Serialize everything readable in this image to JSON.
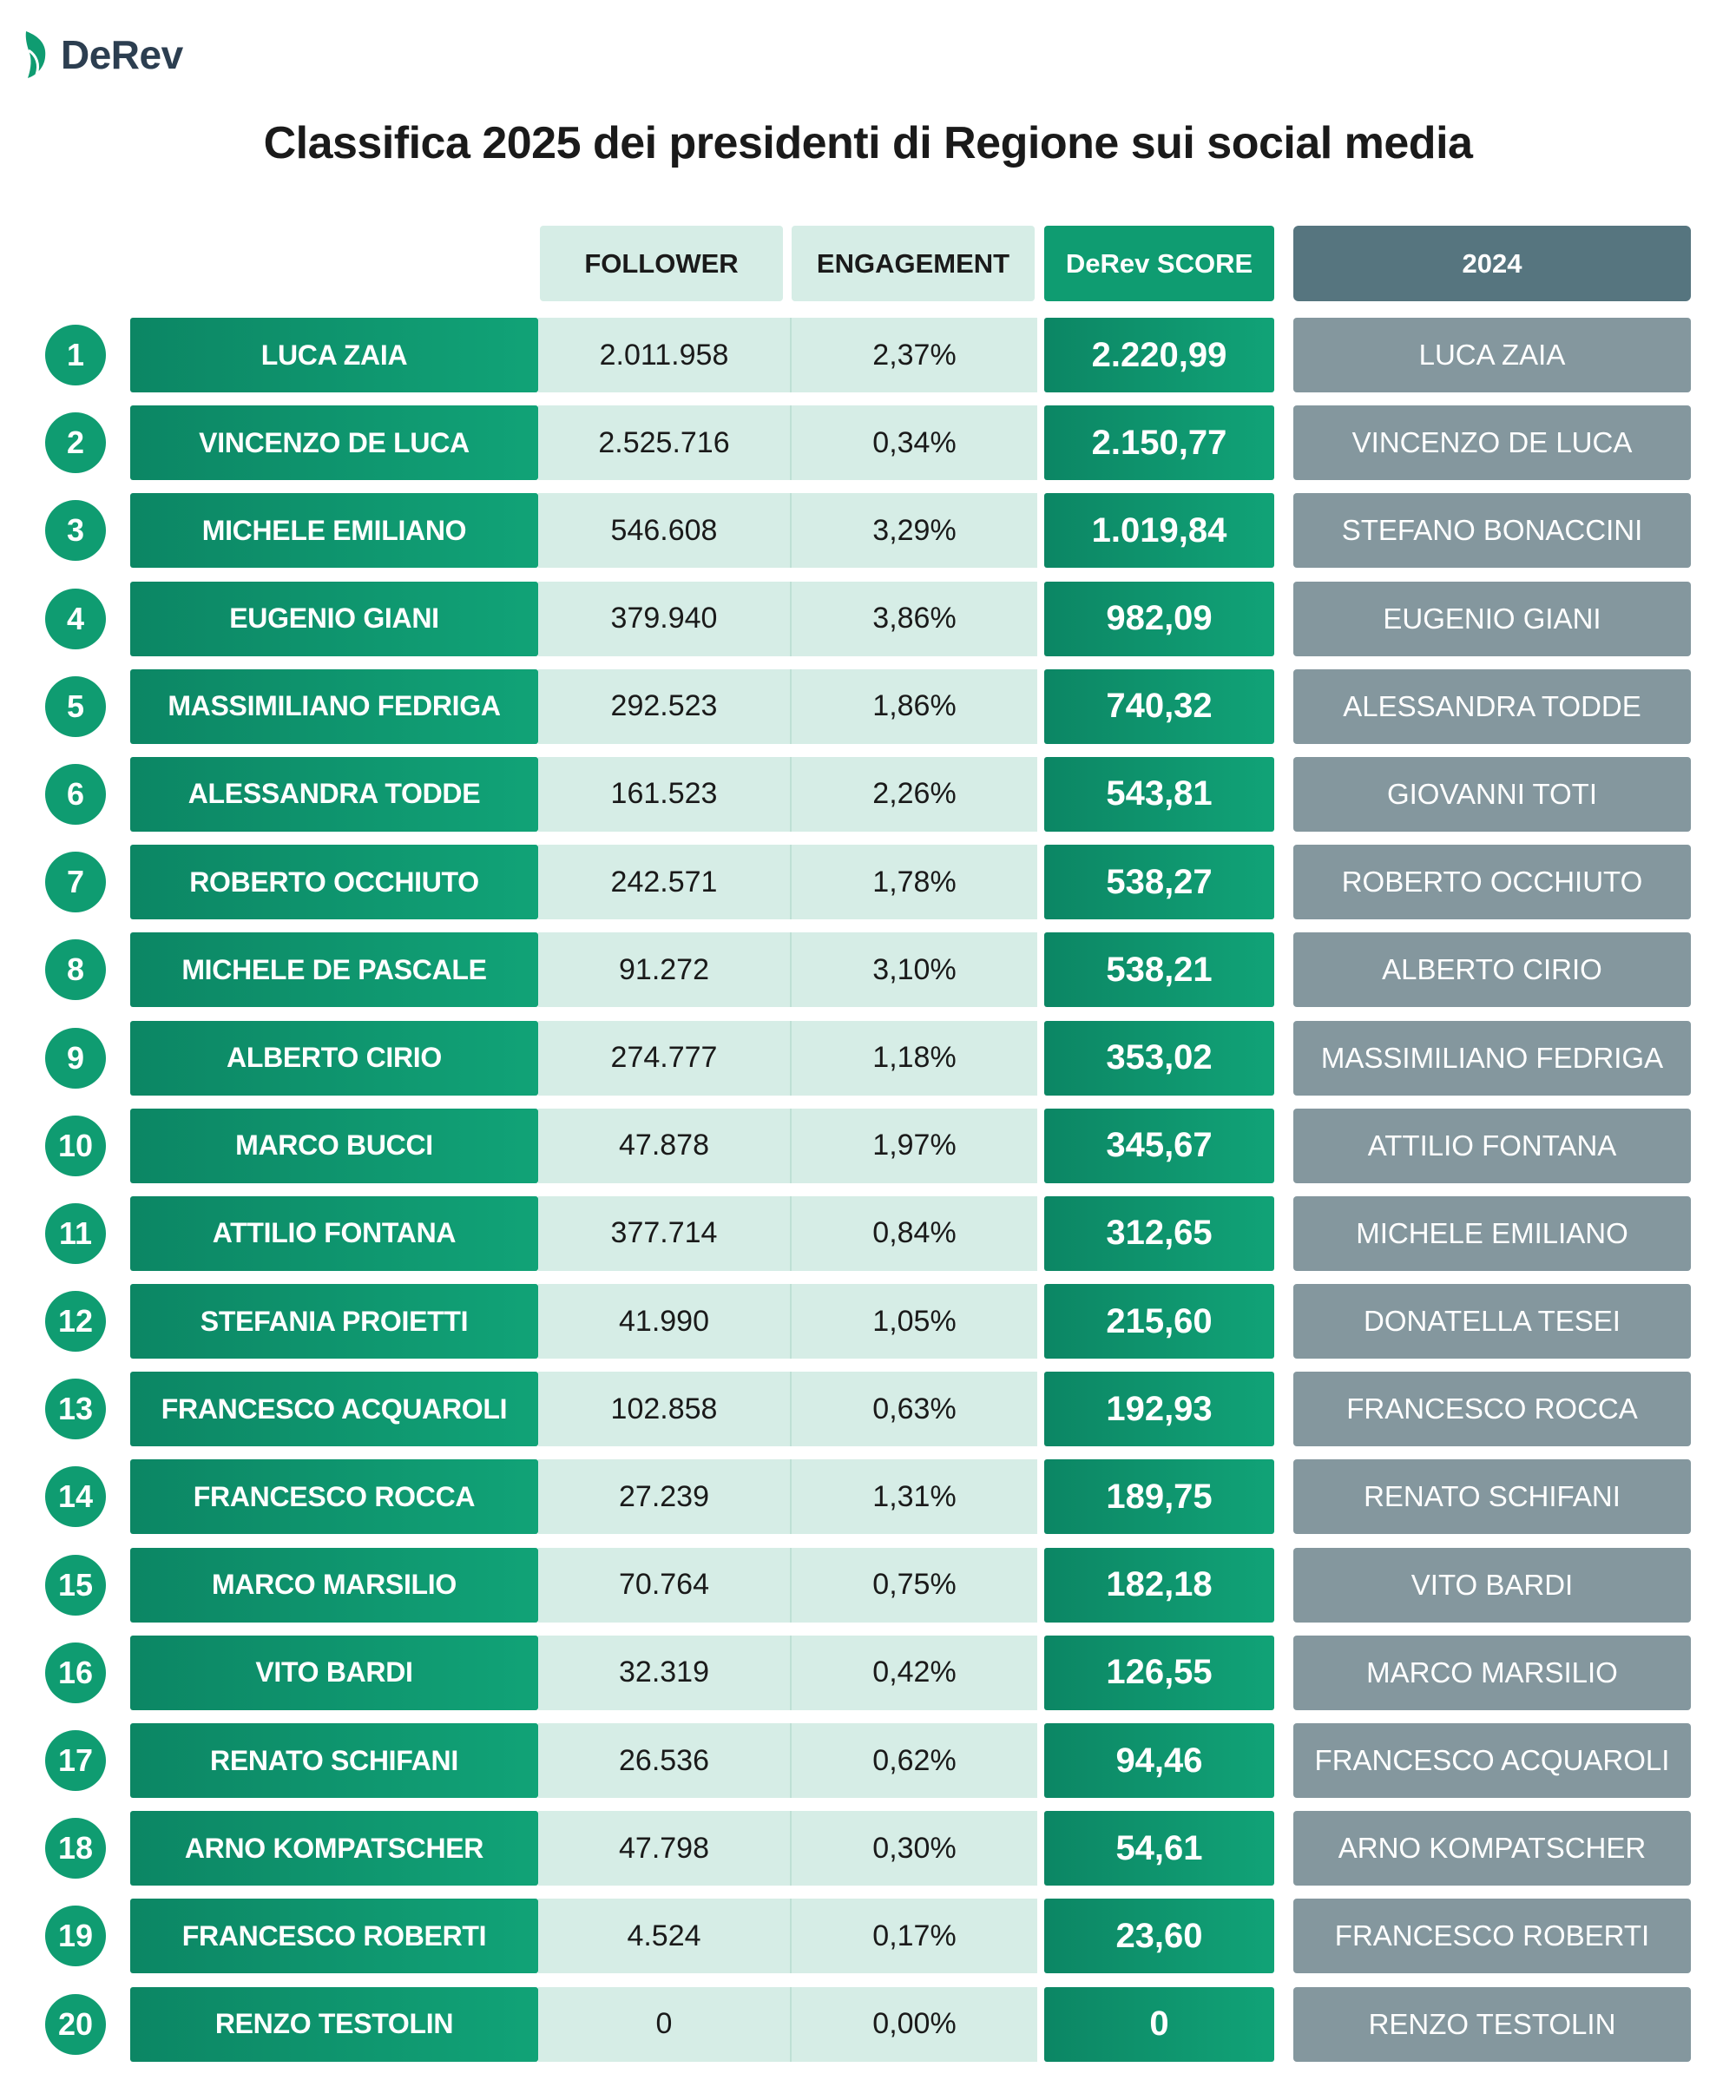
{
  "brand": {
    "name": "DeRev",
    "color": "#0f9c71"
  },
  "title": "Classifica 2025 dei presidenti di Regione sui social media",
  "headers": {
    "follower": "FOLLOWER",
    "engagement": "ENGAGEMENT",
    "score": "DeRev SCORE",
    "prev_year": "2024"
  },
  "colors": {
    "accent": "#0f9c71",
    "light_cell": "#d6ede6",
    "prev_cell": "#84979e",
    "prev_header": "#56757f"
  },
  "rows": [
    {
      "rank": "1",
      "name": "LUCA ZAIA",
      "follower": "2.011.958",
      "engagement": "2,37%",
      "score": "2.220,99",
      "prev": "LUCA ZAIA"
    },
    {
      "rank": "2",
      "name": "VINCENZO DE LUCA",
      "follower": "2.525.716",
      "engagement": "0,34%",
      "score": "2.150,77",
      "prev": "VINCENZO DE LUCA"
    },
    {
      "rank": "3",
      "name": "MICHELE EMILIANO",
      "follower": "546.608",
      "engagement": "3,29%",
      "score": "1.019,84",
      "prev": "STEFANO BONACCINI"
    },
    {
      "rank": "4",
      "name": "EUGENIO GIANI",
      "follower": "379.940",
      "engagement": "3,86%",
      "score": "982,09",
      "prev": "EUGENIO GIANI"
    },
    {
      "rank": "5",
      "name": "MASSIMILIANO FEDRIGA",
      "follower": "292.523",
      "engagement": "1,86%",
      "score": "740,32",
      "prev": "ALESSANDRA TODDE"
    },
    {
      "rank": "6",
      "name": "ALESSANDRA TODDE",
      "follower": "161.523",
      "engagement": "2,26%",
      "score": "543,81",
      "prev": "GIOVANNI TOTI"
    },
    {
      "rank": "7",
      "name": "ROBERTO OCCHIUTO",
      "follower": "242.571",
      "engagement": "1,78%",
      "score": "538,27",
      "prev": "ROBERTO OCCHIUTO"
    },
    {
      "rank": "8",
      "name": "MICHELE DE PASCALE",
      "follower": "91.272",
      "engagement": "3,10%",
      "score": "538,21",
      "prev": "ALBERTO CIRIO"
    },
    {
      "rank": "9",
      "name": "ALBERTO CIRIO",
      "follower": "274.777",
      "engagement": "1,18%",
      "score": "353,02",
      "prev": "MASSIMILIANO FEDRIGA"
    },
    {
      "rank": "10",
      "name": "MARCO BUCCI",
      "follower": "47.878",
      "engagement": "1,97%",
      "score": "345,67",
      "prev": "ATTILIO FONTANA"
    },
    {
      "rank": "11",
      "name": "ATTILIO FONTANA",
      "follower": "377.714",
      "engagement": "0,84%",
      "score": "312,65",
      "prev": "MICHELE EMILIANO"
    },
    {
      "rank": "12",
      "name": "STEFANIA PROIETTI",
      "follower": "41.990",
      "engagement": "1,05%",
      "score": "215,60",
      "prev": "DONATELLA TESEI"
    },
    {
      "rank": "13",
      "name": "FRANCESCO ACQUAROLI",
      "follower": "102.858",
      "engagement": "0,63%",
      "score": "192,93",
      "prev": "FRANCESCO ROCCA"
    },
    {
      "rank": "14",
      "name": "FRANCESCO ROCCA",
      "follower": "27.239",
      "engagement": "1,31%",
      "score": "189,75",
      "prev": "RENATO SCHIFANI"
    },
    {
      "rank": "15",
      "name": "MARCO MARSILIO",
      "follower": "70.764",
      "engagement": "0,75%",
      "score": "182,18",
      "prev": "VITO BARDI"
    },
    {
      "rank": "16",
      "name": "VITO BARDI",
      "follower": "32.319",
      "engagement": "0,42%",
      "score": "126,55",
      "prev": "MARCO MARSILIO"
    },
    {
      "rank": "17",
      "name": "RENATO SCHIFANI",
      "follower": "26.536",
      "engagement": "0,62%",
      "score": "94,46",
      "prev": "FRANCESCO ACQUAROLI"
    },
    {
      "rank": "18",
      "name": "ARNO KOMPATSCHER",
      "follower": "47.798",
      "engagement": "0,30%",
      "score": "54,61",
      "prev": "ARNO KOMPATSCHER"
    },
    {
      "rank": "19",
      "name": "FRANCESCO ROBERTI",
      "follower": "4.524",
      "engagement": "0,17%",
      "score": "23,60",
      "prev": "FRANCESCO ROBERTI"
    },
    {
      "rank": "20",
      "name": "RENZO TESTOLIN",
      "follower": "0",
      "engagement": "0,00%",
      "score": "0",
      "prev": "RENZO TESTOLIN"
    }
  ]
}
